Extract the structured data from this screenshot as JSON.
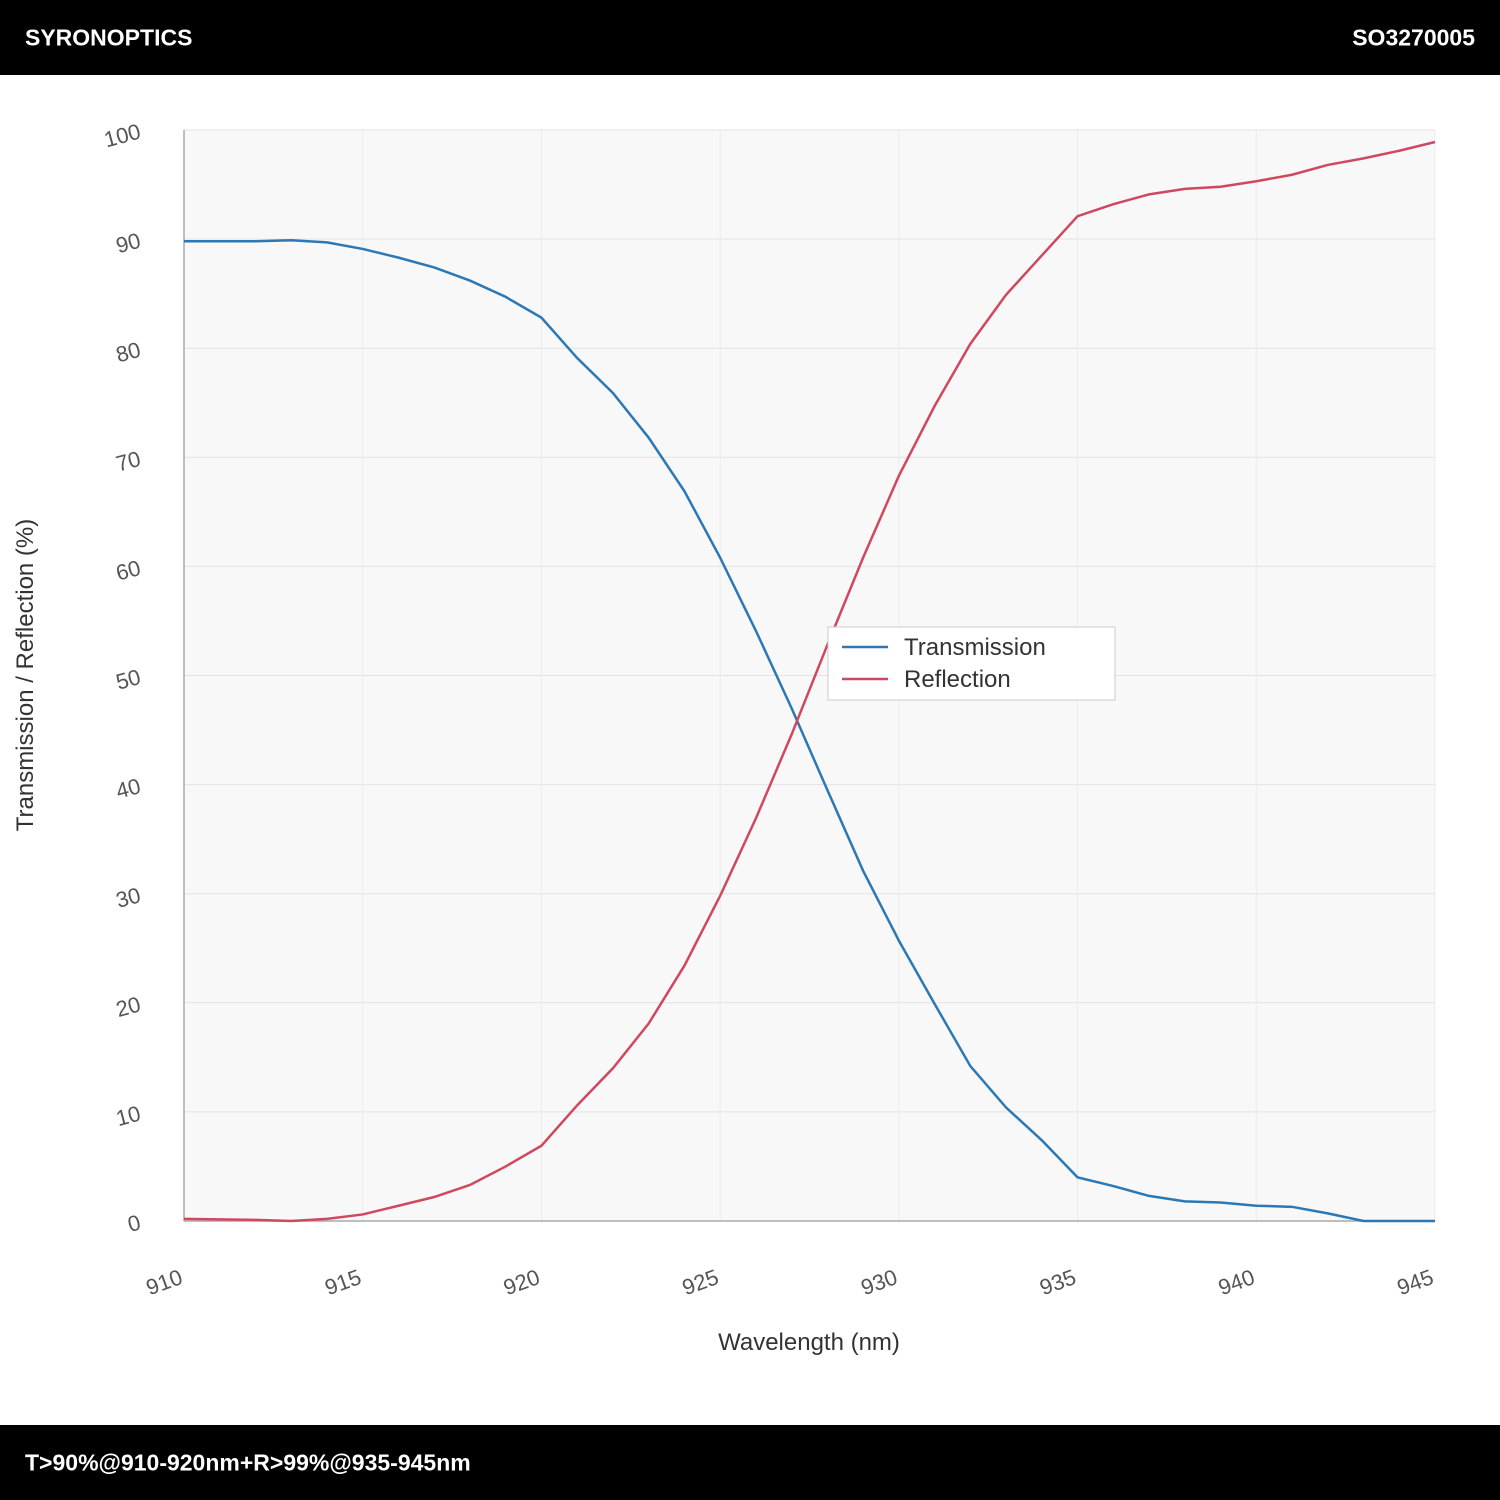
{
  "header": {
    "brand": "SYRONOPTICS",
    "code": "SO3270005"
  },
  "footer": {
    "spec": "T>90%@910-920nm+R>99%@935-945nm"
  },
  "chart_data": {
    "type": "line",
    "x_label": "Wavelength (nm)",
    "y_label": "Transmission / Reflection (%)",
    "x": [
      910,
      911,
      912,
      913,
      914,
      915,
      916,
      917,
      918,
      919,
      920,
      921,
      922,
      923,
      924,
      925,
      926,
      927,
      928,
      929,
      930,
      931,
      932,
      933,
      934,
      935,
      936,
      937,
      938,
      939,
      940,
      941,
      942,
      943,
      944,
      945
    ],
    "series": [
      {
        "name": "Transmission",
        "color": "#2a78b5",
        "values": [
          89.8,
          89.8,
          89.8,
          89.9,
          89.7,
          89.1,
          88.3,
          87.4,
          86.2,
          84.7,
          82.8,
          79.1,
          75.9,
          71.8,
          66.9,
          60.8,
          54.1,
          47.0,
          39.5,
          32.1,
          25.7,
          19.9,
          14.2,
          10.4,
          7.4,
          4.0,
          3.2,
          2.3,
          1.8,
          1.7,
          1.4,
          1.3,
          0.7,
          0,
          0,
          0
        ]
      },
      {
        "name": "Reflection",
        "color": "#d0485e",
        "values": [
          0.2,
          0.15,
          0.1,
          0,
          0.2,
          0.6,
          1.4,
          2.2,
          3.3,
          5.0,
          6.9,
          10.6,
          14.0,
          18.1,
          23.4,
          29.8,
          36.9,
          44.6,
          52.8,
          60.8,
          68.3,
          74.7,
          80.4,
          84.9,
          88.5,
          92.1,
          93.2,
          94.1,
          94.6,
          94.8,
          95.3,
          95.9,
          96.8,
          97.4,
          98.1,
          98.9
        ]
      }
    ],
    "xlim": [
      910,
      945
    ],
    "xticks": [
      910,
      915,
      920,
      925,
      930,
      935,
      940,
      945
    ],
    "ylim": [
      0,
      100
    ],
    "yticks": [
      0,
      10,
      20,
      30,
      40,
      50,
      60,
      70,
      80,
      90,
      100
    ],
    "grid": true,
    "legend": "center"
  }
}
